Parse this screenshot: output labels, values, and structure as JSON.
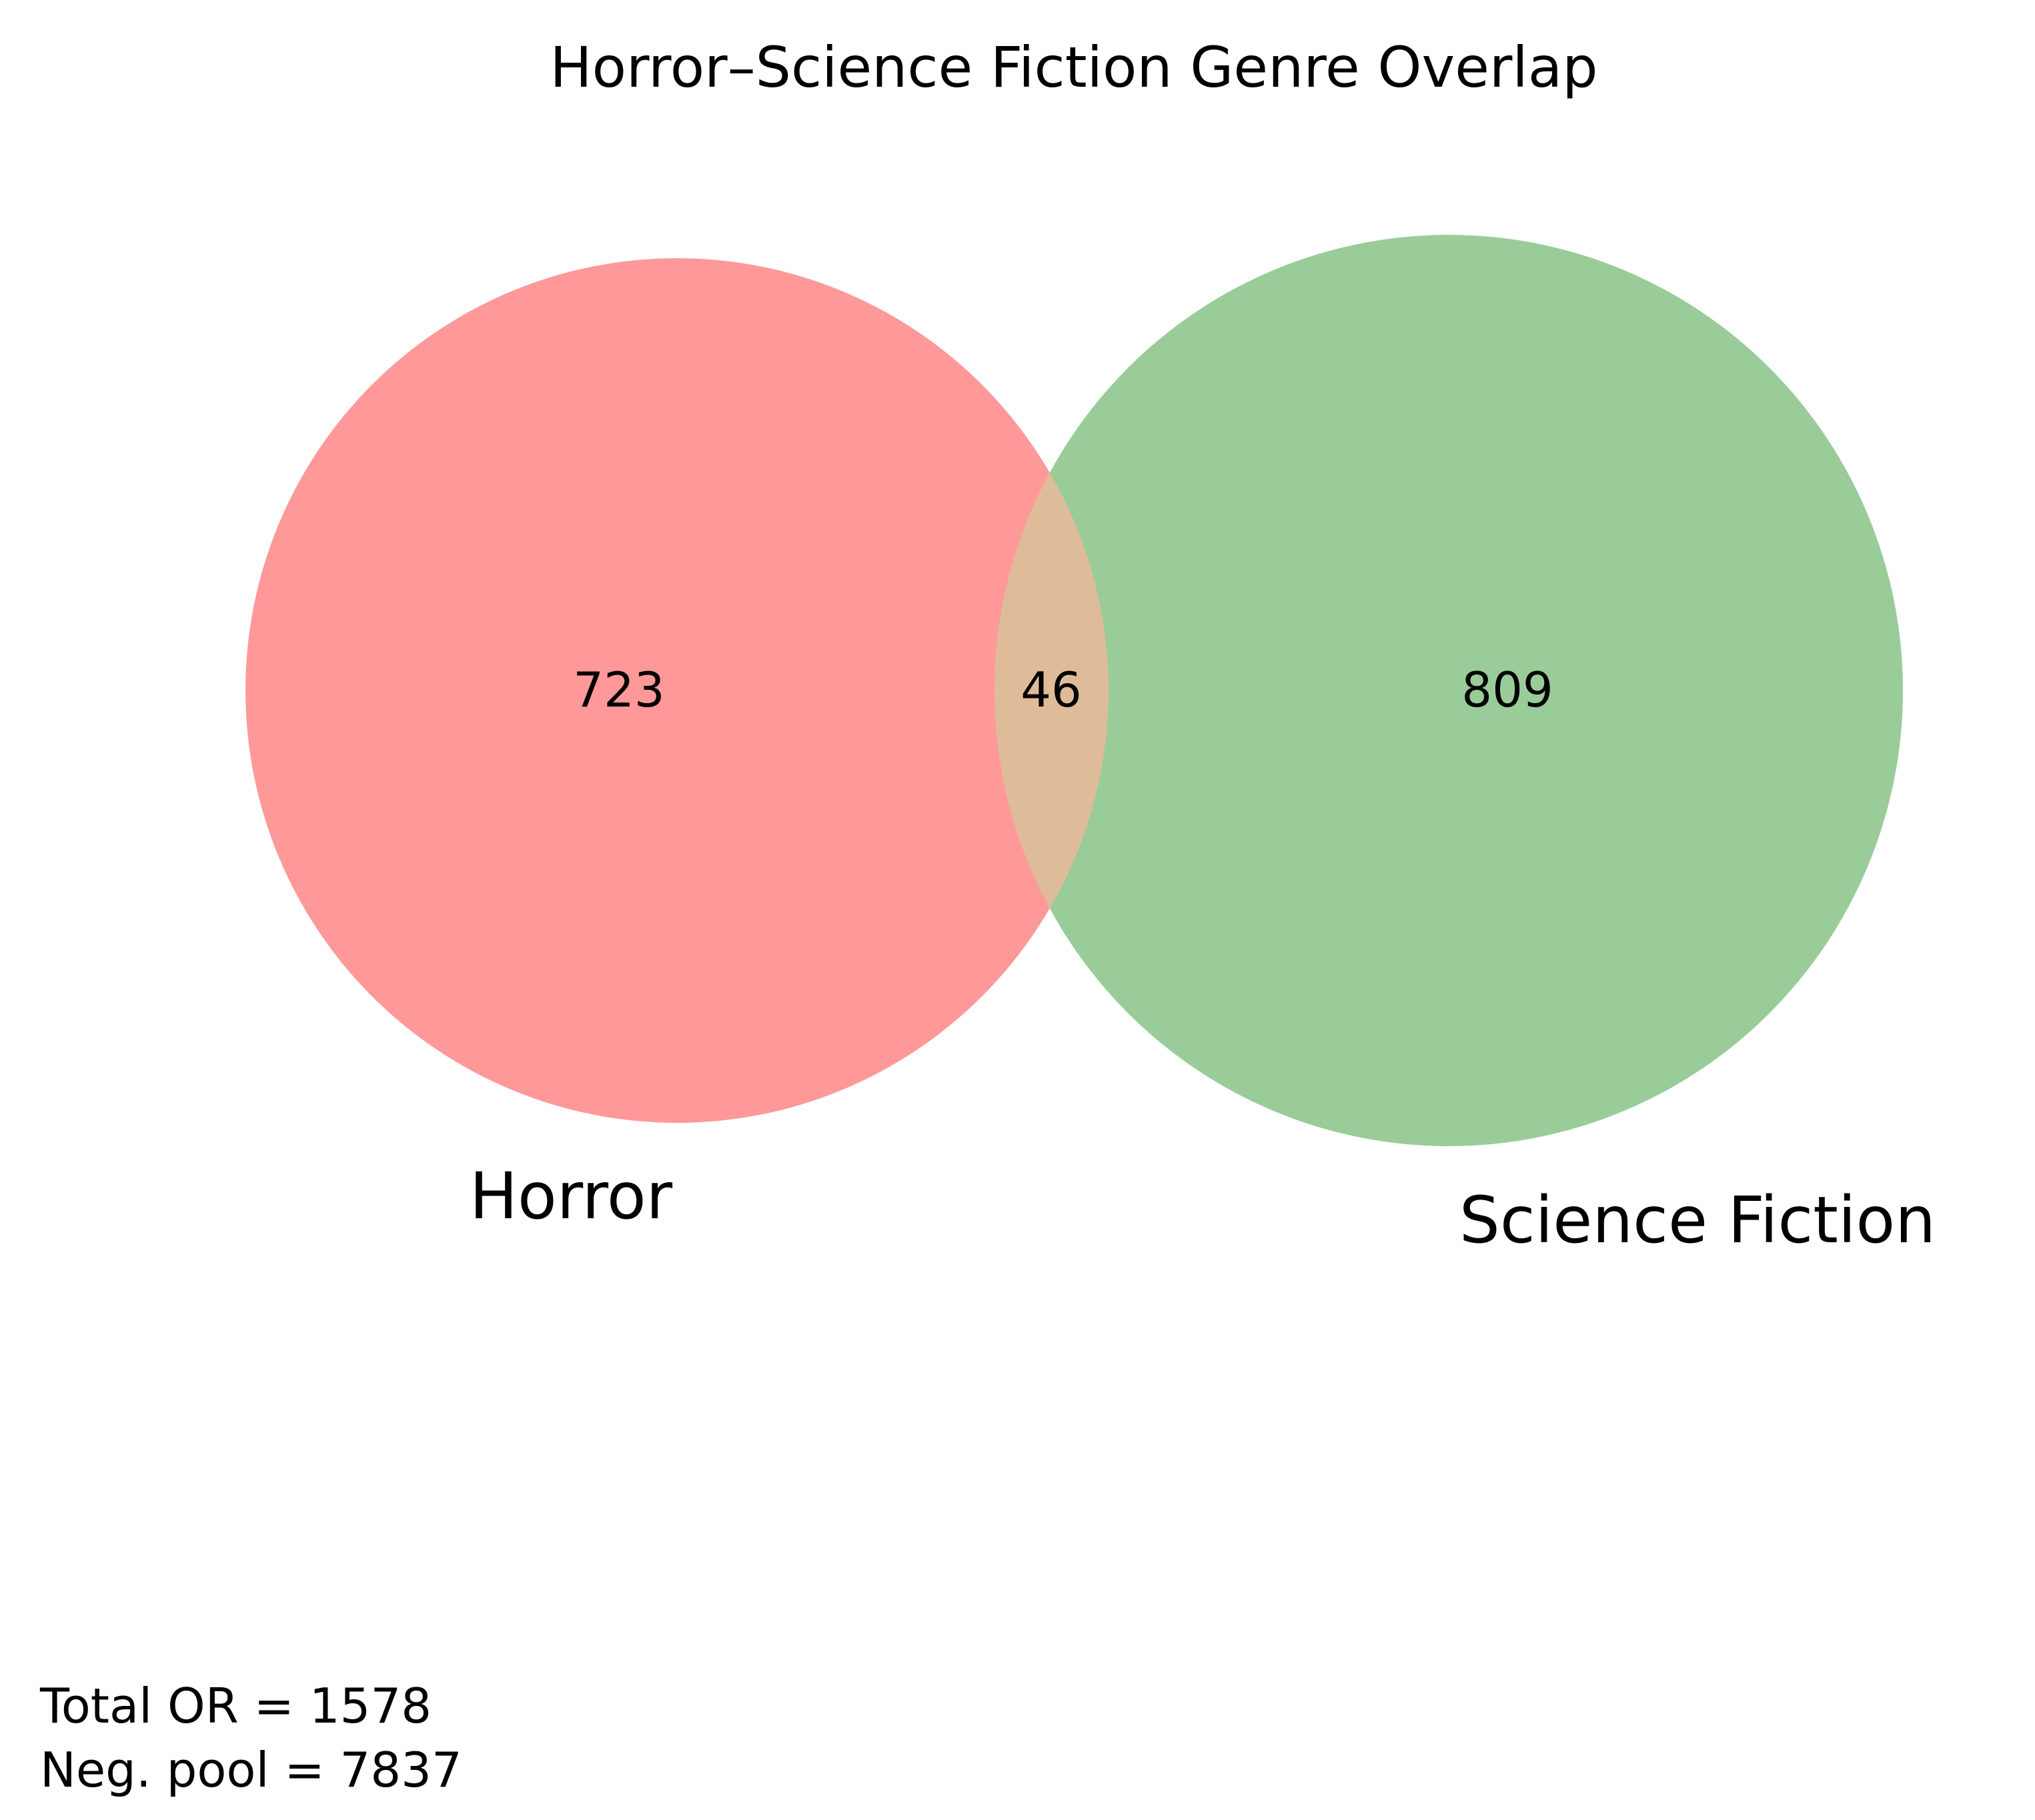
{
  "title": "Horror–Science Fiction Genre Overlap",
  "sets": [
    {
      "name": "Horror",
      "only_count": "723",
      "color": "#ff9999"
    },
    {
      "name": "Science Fiction",
      "only_count": "809",
      "color": "#99cc99"
    }
  ],
  "intersection": {
    "count": "46",
    "color": "#dfbc99"
  },
  "footnote": {
    "total": "Total OR = 1578",
    "neg_pool": "Neg. pool = 7837"
  },
  "chart_data": {
    "type": "venn",
    "title": "Horror–Science Fiction Genre Overlap",
    "sets": [
      "Horror",
      "Science Fiction"
    ],
    "regions": [
      {
        "sets": [
          "Horror"
        ],
        "value": 723
      },
      {
        "sets": [
          "Horror",
          "Science Fiction"
        ],
        "value": 46
      },
      {
        "sets": [
          "Science Fiction"
        ],
        "value": 809
      }
    ],
    "annotations": [
      "Total OR = 1578",
      "Neg. pool = 7837"
    ]
  }
}
